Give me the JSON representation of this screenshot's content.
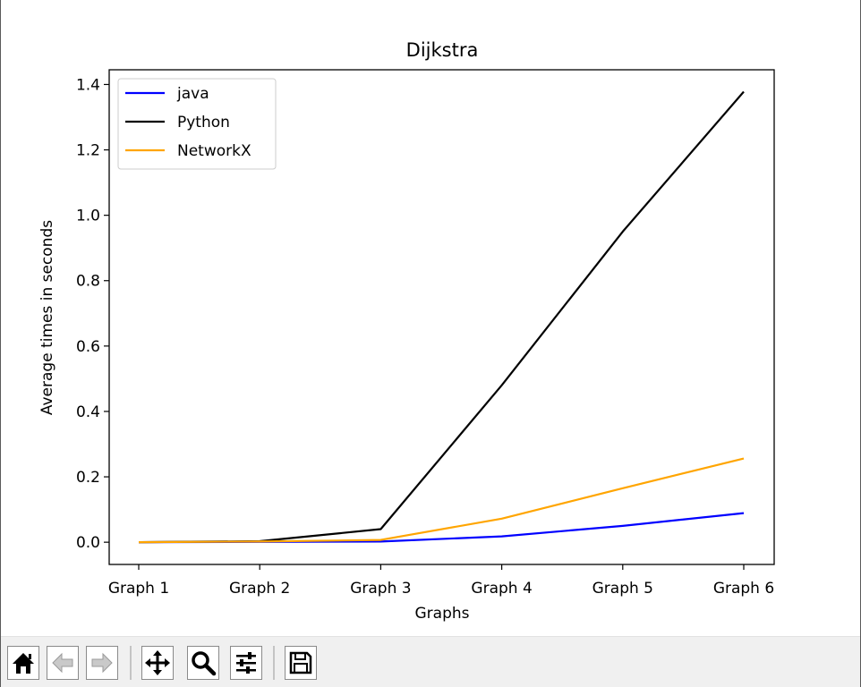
{
  "chart_data": {
    "type": "line",
    "title": "Dijkstra",
    "xlabel": "Graphs",
    "ylabel": "Average times in seconds",
    "categories": [
      "Graph 1",
      "Graph 2",
      "Graph 3",
      "Graph 4",
      "Graph 5",
      "Graph 6"
    ],
    "ylim": [
      -0.068,
      1.445
    ],
    "yticks": [
      0.0,
      0.2,
      0.4,
      0.6,
      0.8,
      1.0,
      1.2,
      1.4
    ],
    "grid": false,
    "legend": "top-left",
    "series": [
      {
        "name": "java",
        "color": "#0000ff",
        "values": [
          0.0,
          0.001,
          0.002,
          0.018,
          0.05,
          0.089
        ]
      },
      {
        "name": "Python",
        "color": "#000000",
        "values": [
          0.0,
          0.003,
          0.04,
          0.48,
          0.95,
          1.378
        ]
      },
      {
        "name": "NetworkX",
        "color": "#ffa500",
        "values": [
          0.0,
          0.002,
          0.007,
          0.072,
          0.165,
          0.256
        ]
      }
    ]
  },
  "toolbar": {
    "buttons": [
      {
        "name": "home",
        "icon": "home-icon"
      },
      {
        "name": "back",
        "icon": "arrow-left-icon"
      },
      {
        "name": "forward",
        "icon": "arrow-right-icon"
      },
      {
        "name": "pan",
        "icon": "move-icon"
      },
      {
        "name": "zoom",
        "icon": "magnifier-icon"
      },
      {
        "name": "configure",
        "icon": "sliders-icon"
      },
      {
        "name": "save",
        "icon": "floppy-disk-icon"
      }
    ]
  }
}
